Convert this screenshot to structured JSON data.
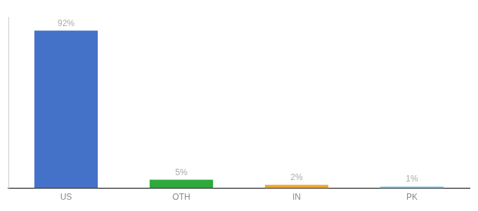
{
  "chart_data": {
    "type": "bar",
    "categories": [
      "US",
      "OTH",
      "IN",
      "PK"
    ],
    "values": [
      92,
      5,
      2,
      1
    ],
    "value_labels": [
      "92%",
      "5%",
      "2%",
      "1%"
    ],
    "colors": [
      "#4472c9",
      "#2eaa3c",
      "#f0a830",
      "#7ec8e3"
    ],
    "ylim": [
      0,
      100
    ],
    "grid": false,
    "data_labels": true,
    "tick_labels": "x"
  }
}
